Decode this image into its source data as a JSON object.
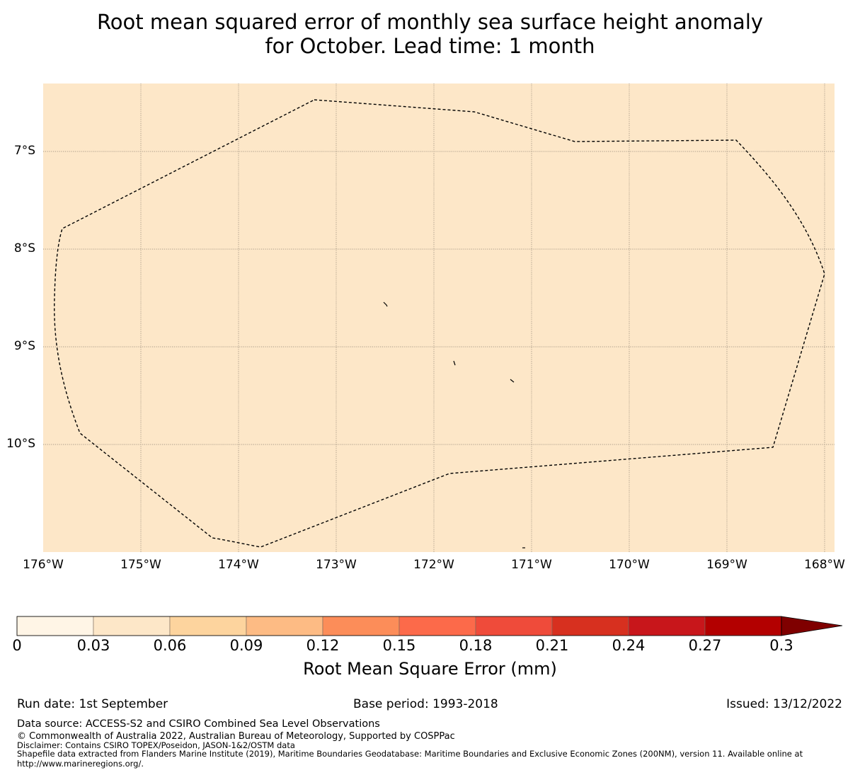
{
  "title": {
    "line1": "Root mean squared error of monthly sea surface height anomaly",
    "line2": "for October. Lead time: 1 month"
  },
  "map": {
    "background_color": "#fde7c8",
    "latitude_labels": [
      "7°S",
      "8°S",
      "9°S",
      "10°S"
    ],
    "longitude_labels": [
      "176°W",
      "175°W",
      "174°W",
      "173°W",
      "172°W",
      "171°W",
      "170°W",
      "169°W",
      "168°W"
    ],
    "eez_boundary_style": "dashed black",
    "islands": "small islands of Tokelau"
  },
  "colorbar": {
    "colors": [
      "#fff5e6",
      "#fde7c8",
      "#fdd49e",
      "#fdbb84",
      "#fc8d59",
      "#fc6a4a",
      "#ef4b3a",
      "#d7301f",
      "#c8161b",
      "#b30000",
      "#7f0000"
    ],
    "tick_labels": [
      "0",
      "0.03",
      "0.06",
      "0.09",
      "0.12",
      "0.15",
      "0.18",
      "0.21",
      "0.24",
      "0.27",
      "0.3"
    ],
    "label": "Root Mean Square Error (mm)"
  },
  "footer": {
    "run_date": "Run date: 1st September",
    "base_period": "Base period: 1993-2018",
    "issued": "Issued: 13/12/2022",
    "data_source": "Data source: ACCESS-S2 and CSIRO Combined Sea Level Observations",
    "copyright": "© Commonwealth of Australia 2022, Australian Bureau of Meteorology, Supported by COSPPac",
    "disclaimer": "Disclaimer: Contains CSIRO TOPEX/Poseidon, JASON-1&2/OSTM data",
    "shapefile_line1": "Shapefile data extracted from Flanders Marine Institute (2019), Maritime Boundaries Geodatabase: Maritime Boundaries and Exclusive Economic Zones (200NM), version 11. Available online at",
    "shapefile_line2": "http://www.marineregions.org/."
  }
}
